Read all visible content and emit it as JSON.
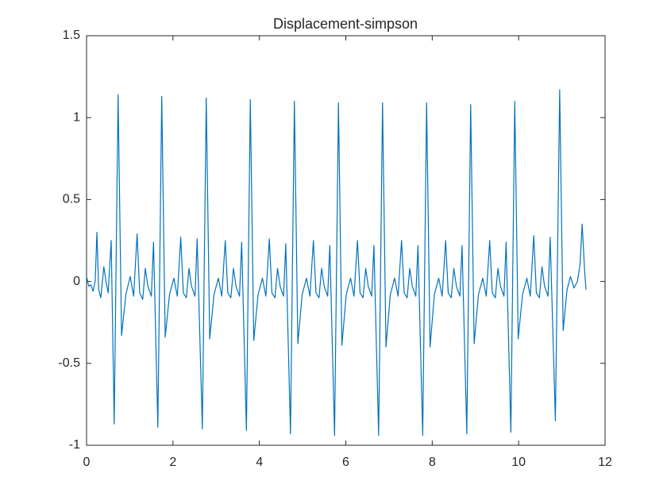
{
  "chart_data": {
    "type": "line",
    "title": "Displacement-simpson",
    "color": "#0072bd",
    "x": [
      0,
      0.05,
      0.1,
      0.15,
      0.2,
      0.24,
      0.28,
      0.33,
      0.4,
      0.45,
      0.5,
      0.57,
      0.64,
      0.73,
      0.81,
      0.91,
      1.01,
      1.09,
      1.17,
      1.23,
      1.3,
      1.36,
      1.42,
      1.5,
      1.55,
      1.65,
      1.74,
      1.82,
      1.92,
      2.02,
      2.1,
      2.18,
      2.24,
      2.31,
      2.37,
      2.43,
      2.51,
      2.56,
      2.68,
      2.77,
      2.85,
      2.95,
      3.05,
      3.13,
      3.21,
      3.27,
      3.34,
      3.4,
      3.46,
      3.54,
      3.59,
      3.7,
      3.79,
      3.87,
      3.97,
      4.07,
      4.15,
      4.23,
      4.29,
      4.36,
      4.42,
      4.48,
      4.56,
      4.61,
      4.72,
      4.81,
      4.89,
      4.99,
      5.09,
      5.17,
      5.25,
      5.31,
      5.38,
      5.44,
      5.5,
      5.58,
      5.63,
      5.74,
      5.83,
      5.91,
      6.01,
      6.11,
      6.19,
      6.27,
      6.33,
      6.4,
      6.46,
      6.52,
      6.6,
      6.65,
      6.76,
      6.85,
      6.93,
      7.03,
      7.13,
      7.21,
      7.29,
      7.35,
      7.42,
      7.48,
      7.54,
      7.62,
      7.67,
      7.78,
      7.87,
      7.95,
      8.05,
      8.15,
      8.23,
      8.31,
      8.37,
      8.44,
      8.5,
      8.56,
      8.64,
      8.69,
      8.8,
      8.89,
      8.97,
      9.07,
      9.17,
      9.25,
      9.33,
      9.39,
      9.46,
      9.52,
      9.58,
      9.66,
      9.71,
      9.82,
      9.91,
      9.99,
      10.09,
      10.19,
      10.27,
      10.35,
      10.41,
      10.48,
      10.54,
      10.6,
      10.68,
      10.73,
      10.85,
      10.95,
      11.03,
      11.12,
      11.2,
      11.28,
      11.36,
      11.42,
      11.47,
      11.53,
      11.56
    ],
    "values": [
      0.03,
      -0.03,
      -0.02,
      -0.06,
      0.0,
      0.3,
      -0.05,
      -0.1,
      0.09,
      0.0,
      -0.07,
      0.25,
      -0.87,
      1.14,
      -0.33,
      -0.08,
      0.03,
      -0.09,
      0.29,
      -0.07,
      -0.11,
      0.08,
      -0.03,
      -0.09,
      0.24,
      -0.89,
      1.13,
      -0.34,
      -0.08,
      0.02,
      -0.09,
      0.27,
      -0.07,
      -0.1,
      0.08,
      -0.03,
      -0.09,
      0.26,
      -0.9,
      1.12,
      -0.35,
      -0.08,
      0.02,
      -0.09,
      0.25,
      -0.07,
      -0.1,
      0.08,
      -0.03,
      -0.09,
      0.24,
      -0.91,
      1.11,
      -0.36,
      -0.08,
      0.02,
      -0.09,
      0.26,
      -0.07,
      -0.1,
      0.08,
      -0.03,
      -0.09,
      0.23,
      -0.93,
      1.1,
      -0.38,
      -0.08,
      0.02,
      -0.09,
      0.25,
      -0.07,
      -0.1,
      0.08,
      -0.03,
      -0.09,
      0.22,
      -0.94,
      1.09,
      -0.39,
      -0.08,
      0.02,
      -0.09,
      0.25,
      -0.07,
      -0.1,
      0.08,
      -0.03,
      -0.09,
      0.22,
      -0.94,
      1.09,
      -0.4,
      -0.08,
      0.02,
      -0.09,
      0.25,
      -0.07,
      -0.1,
      0.08,
      -0.03,
      -0.09,
      0.22,
      -0.94,
      1.09,
      -0.4,
      -0.08,
      0.02,
      -0.09,
      0.25,
      -0.07,
      -0.1,
      0.08,
      -0.03,
      -0.09,
      0.22,
      -0.93,
      1.08,
      -0.38,
      -0.08,
      0.02,
      -0.09,
      0.25,
      -0.07,
      -0.1,
      0.08,
      -0.03,
      -0.09,
      0.24,
      -0.92,
      1.1,
      -0.35,
      -0.08,
      0.02,
      -0.09,
      0.28,
      -0.07,
      -0.1,
      0.09,
      -0.03,
      -0.09,
      0.27,
      -0.85,
      1.17,
      -0.3,
      -0.05,
      0.03,
      -0.04,
      0.0,
      0.1,
      0.35,
      0.05,
      -0.05
    ],
    "xlim": [
      0,
      12
    ],
    "xticks": [
      0,
      2,
      4,
      6,
      8,
      10,
      12
    ],
    "ylim": [
      -1,
      1.5
    ],
    "yticks": [
      -1,
      -0.5,
      0,
      0.5,
      1,
      1.5
    ]
  }
}
